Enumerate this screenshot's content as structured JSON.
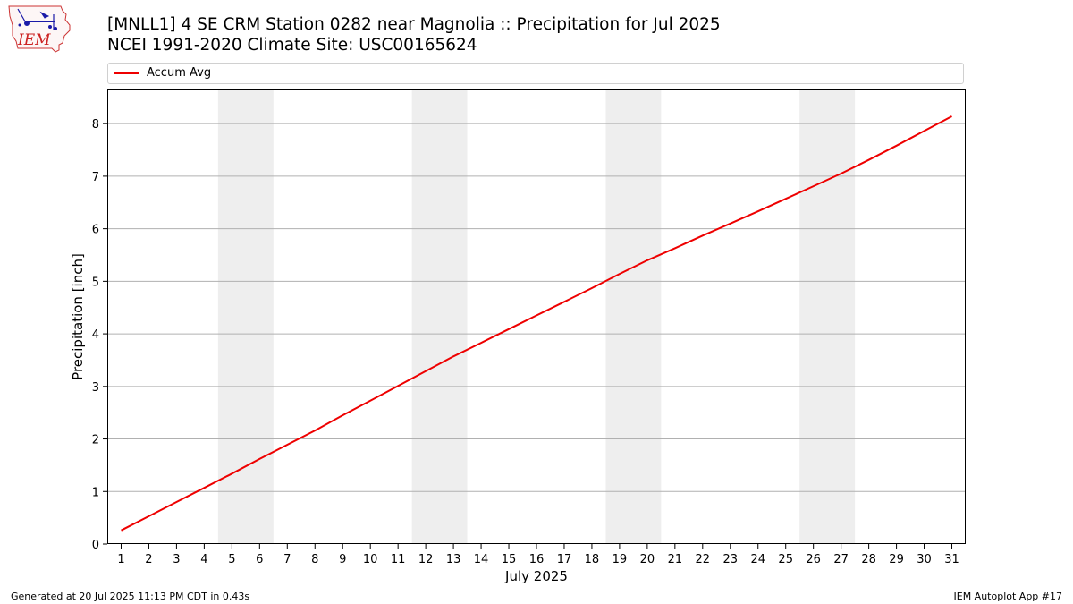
{
  "header": {
    "title_line1": "[MNLL1] 4 SE CRM Station 0282 near Magnolia :: Precipitation for Jul 2025",
    "title_line2": "NCEI 1991-2020 Climate Site: USC00165624"
  },
  "logo": {
    "text": "IEM",
    "icon": "iem-logo-iowa-map"
  },
  "footer": {
    "generated": "Generated at 20 Jul 2025 11:13 PM CDT in 0.43s",
    "app": "IEM Autoplot App #17"
  },
  "colors": {
    "line": "#ee0000",
    "weekend_band": "#eeeeee",
    "grid": "#b0b0b0",
    "logo_blue": "#1a1aa8",
    "logo_red": "#cc2222"
  },
  "chart_data": {
    "type": "line",
    "title": "[MNLL1] 4 SE CRM Station 0282 near Magnolia :: Precipitation for Jul 2025",
    "subtitle": "NCEI 1991-2020 Climate Site: USC00165624",
    "xlabel": "July 2025",
    "ylabel": "Precipitation [inch]",
    "x": [
      1,
      2,
      3,
      4,
      5,
      6,
      7,
      8,
      9,
      10,
      11,
      12,
      13,
      14,
      15,
      16,
      17,
      18,
      19,
      20,
      21,
      22,
      23,
      24,
      25,
      26,
      27,
      28,
      29,
      30,
      31
    ],
    "xlim": [
      0.5,
      31.5
    ],
    "ylim": [
      0,
      8.65
    ],
    "yticks": [
      0,
      1,
      2,
      3,
      4,
      5,
      6,
      7,
      8
    ],
    "grid": "y",
    "legend_position": "top",
    "weekend_bands": [
      [
        4.5,
        6.5
      ],
      [
        11.5,
        13.5
      ],
      [
        18.5,
        20.5
      ],
      [
        25.5,
        27.5
      ]
    ],
    "series": [
      {
        "name": "Accum Avg",
        "values": [
          0.26,
          0.53,
          0.8,
          1.07,
          1.34,
          1.62,
          1.89,
          2.16,
          2.45,
          2.73,
          3.01,
          3.29,
          3.57,
          3.83,
          4.09,
          4.35,
          4.61,
          4.87,
          5.14,
          5.4,
          5.63,
          5.87,
          6.1,
          6.33,
          6.57,
          6.81,
          7.05,
          7.31,
          7.58,
          7.86,
          8.14
        ]
      }
    ]
  }
}
